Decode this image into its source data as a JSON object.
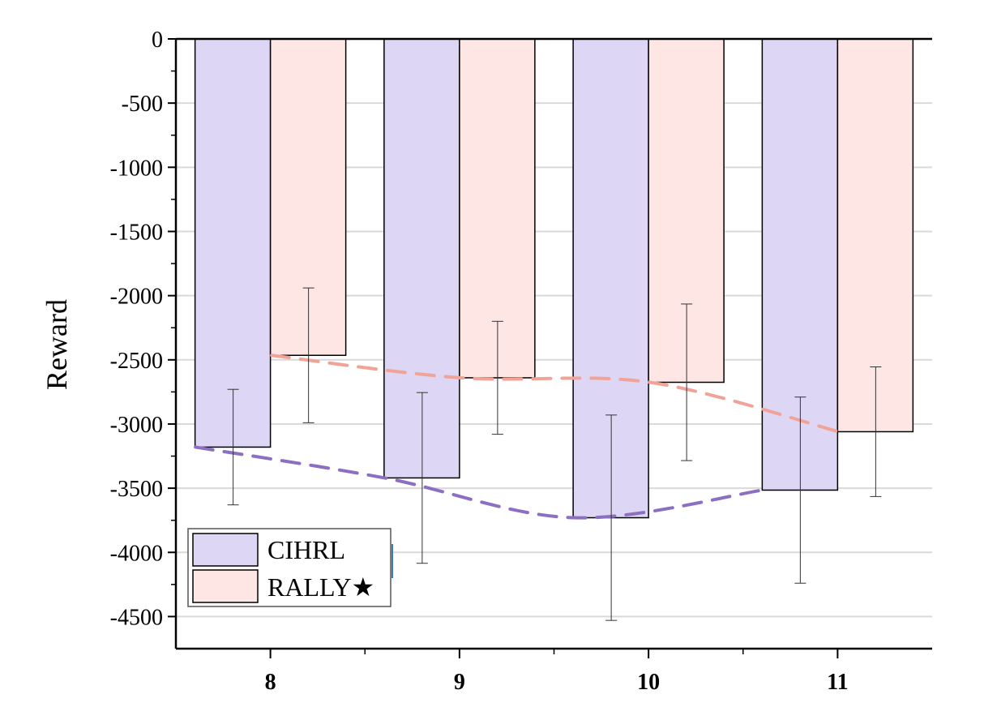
{
  "chart_data": {
    "type": "bar",
    "title": "",
    "xlabel": "",
    "ylabel": "Reward",
    "ylim": [
      -4750,
      0
    ],
    "yticks": [
      0,
      -500,
      -1000,
      -1500,
      -2000,
      -2500,
      -3000,
      -3500,
      -4000,
      -4500
    ],
    "ytick_labels": [
      "0",
      "-500",
      "-1000",
      "-1500",
      "-2000",
      "-2500",
      "-3000",
      "-3500",
      "-4000",
      "-4500"
    ],
    "categories": [
      "8",
      "9",
      "10",
      "11"
    ],
    "grid": "horizontal",
    "legend_position": "bottom-left",
    "series": [
      {
        "name": "CIHRL",
        "values": [
          -3180,
          -3420,
          -3730,
          -3515
        ],
        "errors": [
          450,
          665,
          800,
          725
        ],
        "color": "#ddd6f5",
        "trend_color": "#8c6fc1"
      },
      {
        "name": "RALLY★",
        "values": [
          -2465,
          -2640,
          -2675,
          -3060
        ],
        "errors": [
          525,
          440,
          610,
          505
        ],
        "color": "#fde6e4",
        "trend_color": "#f2a397"
      }
    ]
  }
}
